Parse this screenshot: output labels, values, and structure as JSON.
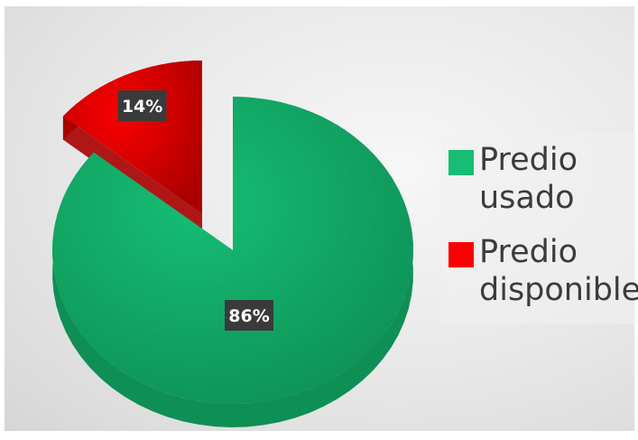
{
  "chart_data": {
    "type": "pie",
    "title": "",
    "labels": [
      "Predio usado",
      "Predio disponible"
    ],
    "label_lines": [
      [
        "Predio",
        "usado"
      ],
      [
        "Predio",
        "disponible"
      ]
    ],
    "values": [
      86,
      14
    ],
    "value_labels": [
      "86%",
      "14%"
    ],
    "colors": [
      "#15be74",
      "#fb0000"
    ],
    "side_colors": [
      "#0e8f56",
      "#a80000"
    ],
    "exploded_slice": 1,
    "3d": true,
    "legend_position": "right"
  }
}
